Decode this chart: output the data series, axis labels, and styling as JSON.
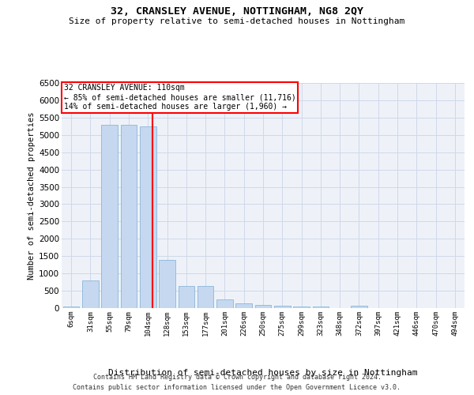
{
  "title1": "32, CRANSLEY AVENUE, NOTTINGHAM, NG8 2QY",
  "title2": "Size of property relative to semi-detached houses in Nottingham",
  "xlabel": "Distribution of semi-detached houses by size in Nottingham",
  "ylabel": "Number of semi-detached properties",
  "categories": [
    "6sqm",
    "31sqm",
    "55sqm",
    "79sqm",
    "104sqm",
    "128sqm",
    "153sqm",
    "177sqm",
    "201sqm",
    "226sqm",
    "250sqm",
    "275sqm",
    "299sqm",
    "323sqm",
    "348sqm",
    "372sqm",
    "397sqm",
    "421sqm",
    "446sqm",
    "470sqm",
    "494sqm"
  ],
  "values": [
    50,
    800,
    5300,
    5300,
    5250,
    1400,
    630,
    630,
    260,
    140,
    100,
    70,
    50,
    50,
    0,
    70,
    0,
    0,
    0,
    0,
    0
  ],
  "bar_color": "#c5d8f0",
  "bar_edgecolor": "#7aaed6",
  "annotation_box_text": "32 CRANSLEY AVENUE: 110sqm\n← 85% of semi-detached houses are smaller (11,716)\n14% of semi-detached houses are larger (1,960) →",
  "annotation_box_color": "white",
  "annotation_box_edgecolor": "red",
  "vline_color": "red",
  "ylim": [
    0,
    6500
  ],
  "yticks": [
    0,
    500,
    1000,
    1500,
    2000,
    2500,
    3000,
    3500,
    4000,
    4500,
    5000,
    5500,
    6000,
    6500
  ],
  "grid_color": "#d0d8e8",
  "background_color": "#eef2f8",
  "footer1": "Contains HM Land Registry data © Crown copyright and database right 2024.",
  "footer2": "Contains public sector information licensed under the Open Government Licence v3.0."
}
